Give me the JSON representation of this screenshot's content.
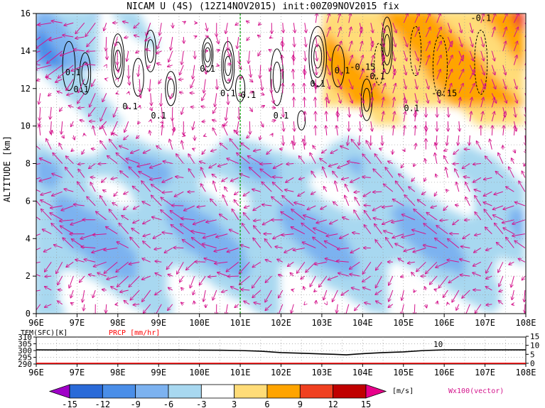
{
  "chart_data": [
    {
      "type": "heatmap",
      "title": "NICAM U (4S) (12Z14NOV2015) init:00Z09NOV2015 fix",
      "xlabel": "",
      "ylabel": "ALTITUDE [km]",
      "xlim": [
        96,
        108
      ],
      "ylim": [
        0,
        16
      ],
      "x_ticks": [
        "96E",
        "97E",
        "98E",
        "99E",
        "100E",
        "101E",
        "102E",
        "103E",
        "104E",
        "105E",
        "106E",
        "107E",
        "108E"
      ],
      "y_ticks": [
        "0",
        "2",
        "4",
        "6",
        "8",
        "10",
        "12",
        "14",
        "16"
      ],
      "grid": true,
      "marker_line_lon": 101,
      "contour_labels": [
        {
          "lon": 96.9,
          "alt": 12.7,
          "text": "0.1"
        },
        {
          "lon": 97.1,
          "alt": 11.8,
          "text": "0.1"
        },
        {
          "lon": 98.3,
          "alt": 10.9,
          "text": "0.1"
        },
        {
          "lon": 99.0,
          "alt": 10.4,
          "text": "0.1"
        },
        {
          "lon": 100.2,
          "alt": 12.9,
          "text": "0.1"
        },
        {
          "lon": 100.7,
          "alt": 11.6,
          "text": "0.1"
        },
        {
          "lon": 101.2,
          "alt": 11.5,
          "text": "0.1"
        },
        {
          "lon": 102.0,
          "alt": 10.4,
          "text": "0.1"
        },
        {
          "lon": 102.9,
          "alt": 12.1,
          "text": "0.1"
        },
        {
          "lon": 103.5,
          "alt": 12.8,
          "text": "0.1"
        },
        {
          "lon": 104.0,
          "alt": 13.0,
          "text": "-0.15"
        },
        {
          "lon": 104.3,
          "alt": 12.5,
          "text": "-0.1"
        },
        {
          "lon": 105.2,
          "alt": 10.8,
          "text": "0.1"
        },
        {
          "lon": 106.0,
          "alt": 11.6,
          "text": "-0.15"
        },
        {
          "lon": 106.9,
          "alt": 15.6,
          "text": "-0.1"
        }
      ],
      "shading_levels": [
        -15,
        -12,
        -9,
        -6,
        -3,
        3,
        6,
        9,
        12,
        15
      ],
      "shading_colors": [
        "#a000c8",
        "#2a6ad8",
        "#4a8ee8",
        "#7cb2f0",
        "#a8d8f0",
        "#ffffff",
        "#ffdc78",
        "#ffa400",
        "#f04020",
        "#c00000",
        "#e8008a"
      ],
      "vector_legend": "Wx100(vector)",
      "vector_color": "#d4148c"
    },
    {
      "type": "line",
      "series": [
        {
          "name": "TEM(SFC)[K]",
          "color": "#000000",
          "x": [
            96,
            96.5,
            97,
            97.5,
            98,
            98.5,
            99,
            99.5,
            100,
            100.5,
            101,
            101.5,
            102,
            102.5,
            103,
            103.3,
            103.6,
            103.9,
            104.2,
            104.5,
            105,
            105.5,
            106,
            106.5,
            107,
            107.5,
            108
          ],
          "values": [
            300.5,
            300.4,
            300.5,
            300.5,
            300.4,
            300.4,
            300.4,
            300.4,
            300.3,
            300.2,
            300,
            299.5,
            298.5,
            298,
            297.5,
            297.2,
            296.8,
            297.5,
            298,
            298.5,
            299,
            300,
            300.5,
            300.5,
            300.5,
            300.5,
            300.5
          ]
        },
        {
          "name": "PRCP [mm/hr]",
          "color": "#ff0000",
          "x": [
            96,
            97,
            98,
            99,
            100,
            101,
            102,
            103,
            104,
            105,
            106,
            107,
            108
          ],
          "values": [
            0,
            0,
            0,
            0,
            0,
            0,
            0,
            0,
            0,
            0,
            0,
            0,
            0
          ]
        }
      ],
      "xlim": [
        96,
        108
      ],
      "ylim": [
        290,
        310
      ],
      "left_ticks": [
        "310",
        "305",
        "300",
        "295",
        "290"
      ],
      "right_ticks": [
        "15",
        "10",
        "5",
        "0"
      ],
      "right_ylim": [
        0,
        15
      ],
      "x_ticks": [
        "96E",
        "97E",
        "98E",
        "99E",
        "100E",
        "101E",
        "102E",
        "103E",
        "104E",
        "105E",
        "106E",
        "107E",
        "108E"
      ],
      "annotation": "10"
    },
    {
      "type": "colorbar",
      "tick_labels": [
        "-15",
        "-12",
        "-9",
        "-6",
        "-3",
        "3",
        "6",
        "9",
        "12",
        "15"
      ],
      "unit": "[m/s]"
    }
  ]
}
